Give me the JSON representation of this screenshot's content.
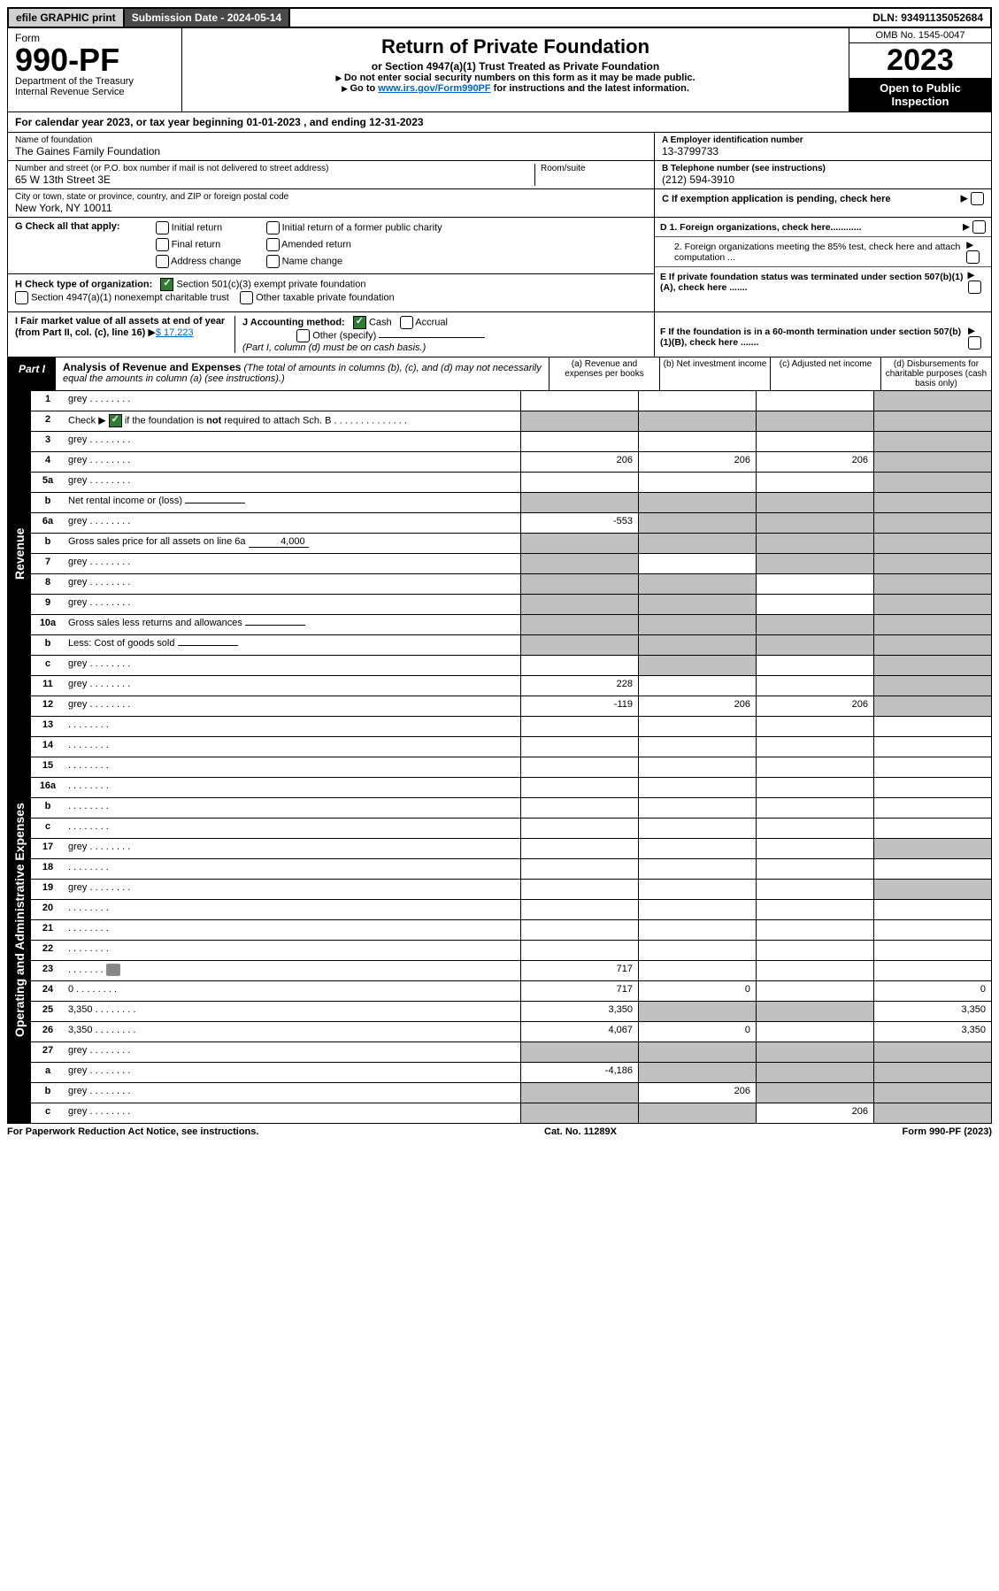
{
  "top": {
    "efile": "efile GRAPHIC print",
    "submission": "Submission Date - 2024-05-14",
    "dln": "DLN: 93491135052684"
  },
  "header": {
    "form_label": "Form",
    "form_num": "990-PF",
    "dept1": "Department of the Treasury",
    "dept2": "Internal Revenue Service",
    "title": "Return of Private Foundation",
    "subtitle": "or Section 4947(a)(1) Trust Treated as Private Foundation",
    "note1": "Do not enter social security numbers on this form as it may be made public.",
    "note2_pre": "Go to ",
    "note2_link": "www.irs.gov/Form990PF",
    "note2_post": " for instructions and the latest information.",
    "omb": "OMB No. 1545-0047",
    "year": "2023",
    "open": "Open to Public Inspection"
  },
  "cal_year": "For calendar year 2023, or tax year beginning 01-01-2023                       , and ending 12-31-2023",
  "org": {
    "name_label": "Name of foundation",
    "name": "The Gaines Family Foundation",
    "addr_label": "Number and street (or P.O. box number if mail is not delivered to street address)",
    "addr": "65 W 13th Street 3E",
    "room_label": "Room/suite",
    "city_label": "City or town, state or province, country, and ZIP or foreign postal code",
    "city": "New York, NY  10011",
    "ein_label": "A Employer identification number",
    "ein": "13-3799733",
    "tel_label": "B Telephone number (see instructions)",
    "tel": "(212) 594-3910",
    "c_label": "C If exemption application is pending, check here"
  },
  "g": {
    "label": "G Check all that apply:",
    "opts": [
      "Initial return",
      "Initial return of a former public charity",
      "Final return",
      "Amended return",
      "Address change",
      "Name change"
    ]
  },
  "right_checks": {
    "d1": "D 1. Foreign organizations, check here............",
    "d2": "2. Foreign organizations meeting the 85% test, check here and attach computation ...",
    "e": "E  If private foundation status was terminated under section 507(b)(1)(A), check here .......",
    "f": "F  If the foundation is in a 60-month termination under section 507(b)(1)(B), check here ......."
  },
  "h": {
    "label": "H Check type of organization:",
    "o1": "Section 501(c)(3) exempt private foundation",
    "o2": "Section 4947(a)(1) nonexempt charitable trust",
    "o3": "Other taxable private foundation"
  },
  "i": {
    "label": "I Fair market value of all assets at end of year (from Part II, col. (c), line 16)",
    "val": "$  17,223"
  },
  "j": {
    "label": "J Accounting method:",
    "cash": "Cash",
    "accrual": "Accrual",
    "other": "Other (specify)",
    "note": "(Part I, column (d) must be on cash basis.)"
  },
  "part1": {
    "label": "Part I",
    "title": "Analysis of Revenue and Expenses",
    "desc": "(The total of amounts in columns (b), (c), and (d) may not necessarily equal the amounts in column (a) (see instructions).)",
    "cols": {
      "a": "(a)   Revenue and expenses per books",
      "b": "(b)   Net investment income",
      "c": "(c)   Adjusted net income",
      "d": "(d)  Disbursements for charitable purposes (cash basis only)"
    }
  },
  "side": {
    "rev": "Revenue",
    "exp": "Operating and Administrative Expenses"
  },
  "rows_rev": [
    {
      "n": "1",
      "d": "grey",
      "a": "",
      "b": "",
      "c": ""
    },
    {
      "n": "2",
      "d": "Check ▶ [✓] if the foundation is <b>not</b> required to attach Sch. B",
      "nocols": true
    },
    {
      "n": "3",
      "d": "grey",
      "a": "",
      "b": "",
      "c": ""
    },
    {
      "n": "4",
      "d": "grey",
      "a": "206",
      "b": "206",
      "c": "206"
    },
    {
      "n": "5a",
      "d": "grey",
      "a": "",
      "b": "",
      "c": ""
    },
    {
      "n": "b",
      "d": "Net rental income or (loss)",
      "inline": "",
      "nocols_after": true
    },
    {
      "n": "6a",
      "d": "grey",
      "a": "-553",
      "b": "grey",
      "c": "grey"
    },
    {
      "n": "b",
      "d": "Gross sales price for all assets on line 6a",
      "inline": "4,000",
      "nocols_after": true
    },
    {
      "n": "7",
      "d": "grey",
      "a": "grey",
      "b": "",
      "c": "grey"
    },
    {
      "n": "8",
      "d": "grey",
      "a": "grey",
      "b": "grey",
      "c": ""
    },
    {
      "n": "9",
      "d": "grey",
      "a": "grey",
      "b": "grey",
      "c": ""
    },
    {
      "n": "10a",
      "d": "Gross sales less returns and allowances",
      "inline": "",
      "nocols_after": true
    },
    {
      "n": "b",
      "d": "Less: Cost of goods sold",
      "inline": "",
      "nocols_after": true
    },
    {
      "n": "c",
      "d": "grey",
      "a": "",
      "b": "grey",
      "c": ""
    },
    {
      "n": "11",
      "d": "grey",
      "a": "228",
      "b": "",
      "c": ""
    },
    {
      "n": "12",
      "d": "grey",
      "a": "-119",
      "b": "206",
      "c": "206"
    }
  ],
  "rows_exp": [
    {
      "n": "13",
      "d": "",
      "a": "",
      "b": "",
      "c": ""
    },
    {
      "n": "14",
      "d": "",
      "a": "",
      "b": "",
      "c": ""
    },
    {
      "n": "15",
      "d": "",
      "a": "",
      "b": "",
      "c": ""
    },
    {
      "n": "16a",
      "d": "",
      "a": "",
      "b": "",
      "c": ""
    },
    {
      "n": "b",
      "d": "",
      "a": "",
      "b": "",
      "c": ""
    },
    {
      "n": "c",
      "d": "",
      "a": "",
      "b": "",
      "c": ""
    },
    {
      "n": "17",
      "d": "grey",
      "a": "",
      "b": "",
      "c": ""
    },
    {
      "n": "18",
      "d": "",
      "a": "",
      "b": "",
      "c": ""
    },
    {
      "n": "19",
      "d": "grey",
      "a": "",
      "b": "",
      "c": ""
    },
    {
      "n": "20",
      "d": "",
      "a": "",
      "b": "",
      "c": ""
    },
    {
      "n": "21",
      "d": "",
      "a": "",
      "b": "",
      "c": ""
    },
    {
      "n": "22",
      "d": "",
      "a": "",
      "b": "",
      "c": ""
    },
    {
      "n": "23",
      "d": "",
      "a": "717",
      "b": "",
      "c": "",
      "icon": true
    },
    {
      "n": "24",
      "d": "0",
      "a": "717",
      "b": "0",
      "c": ""
    },
    {
      "n": "25",
      "d": "3,350",
      "a": "3,350",
      "b": "grey",
      "c": "grey"
    },
    {
      "n": "26",
      "d": "3,350",
      "a": "4,067",
      "b": "0",
      "c": ""
    },
    {
      "n": "27",
      "d": "grey",
      "a": "grey",
      "b": "grey",
      "c": "grey"
    },
    {
      "n": "a",
      "d": "grey",
      "a": "-4,186",
      "b": "grey",
      "c": "grey"
    },
    {
      "n": "b",
      "d": "grey",
      "a": "grey",
      "b": "206",
      "c": "grey"
    },
    {
      "n": "c",
      "d": "grey",
      "a": "grey",
      "b": "grey",
      "c": "206"
    }
  ],
  "footer": {
    "left": "For Paperwork Reduction Act Notice, see instructions.",
    "mid": "Cat. No. 11289X",
    "right": "Form 990-PF (2023)"
  }
}
